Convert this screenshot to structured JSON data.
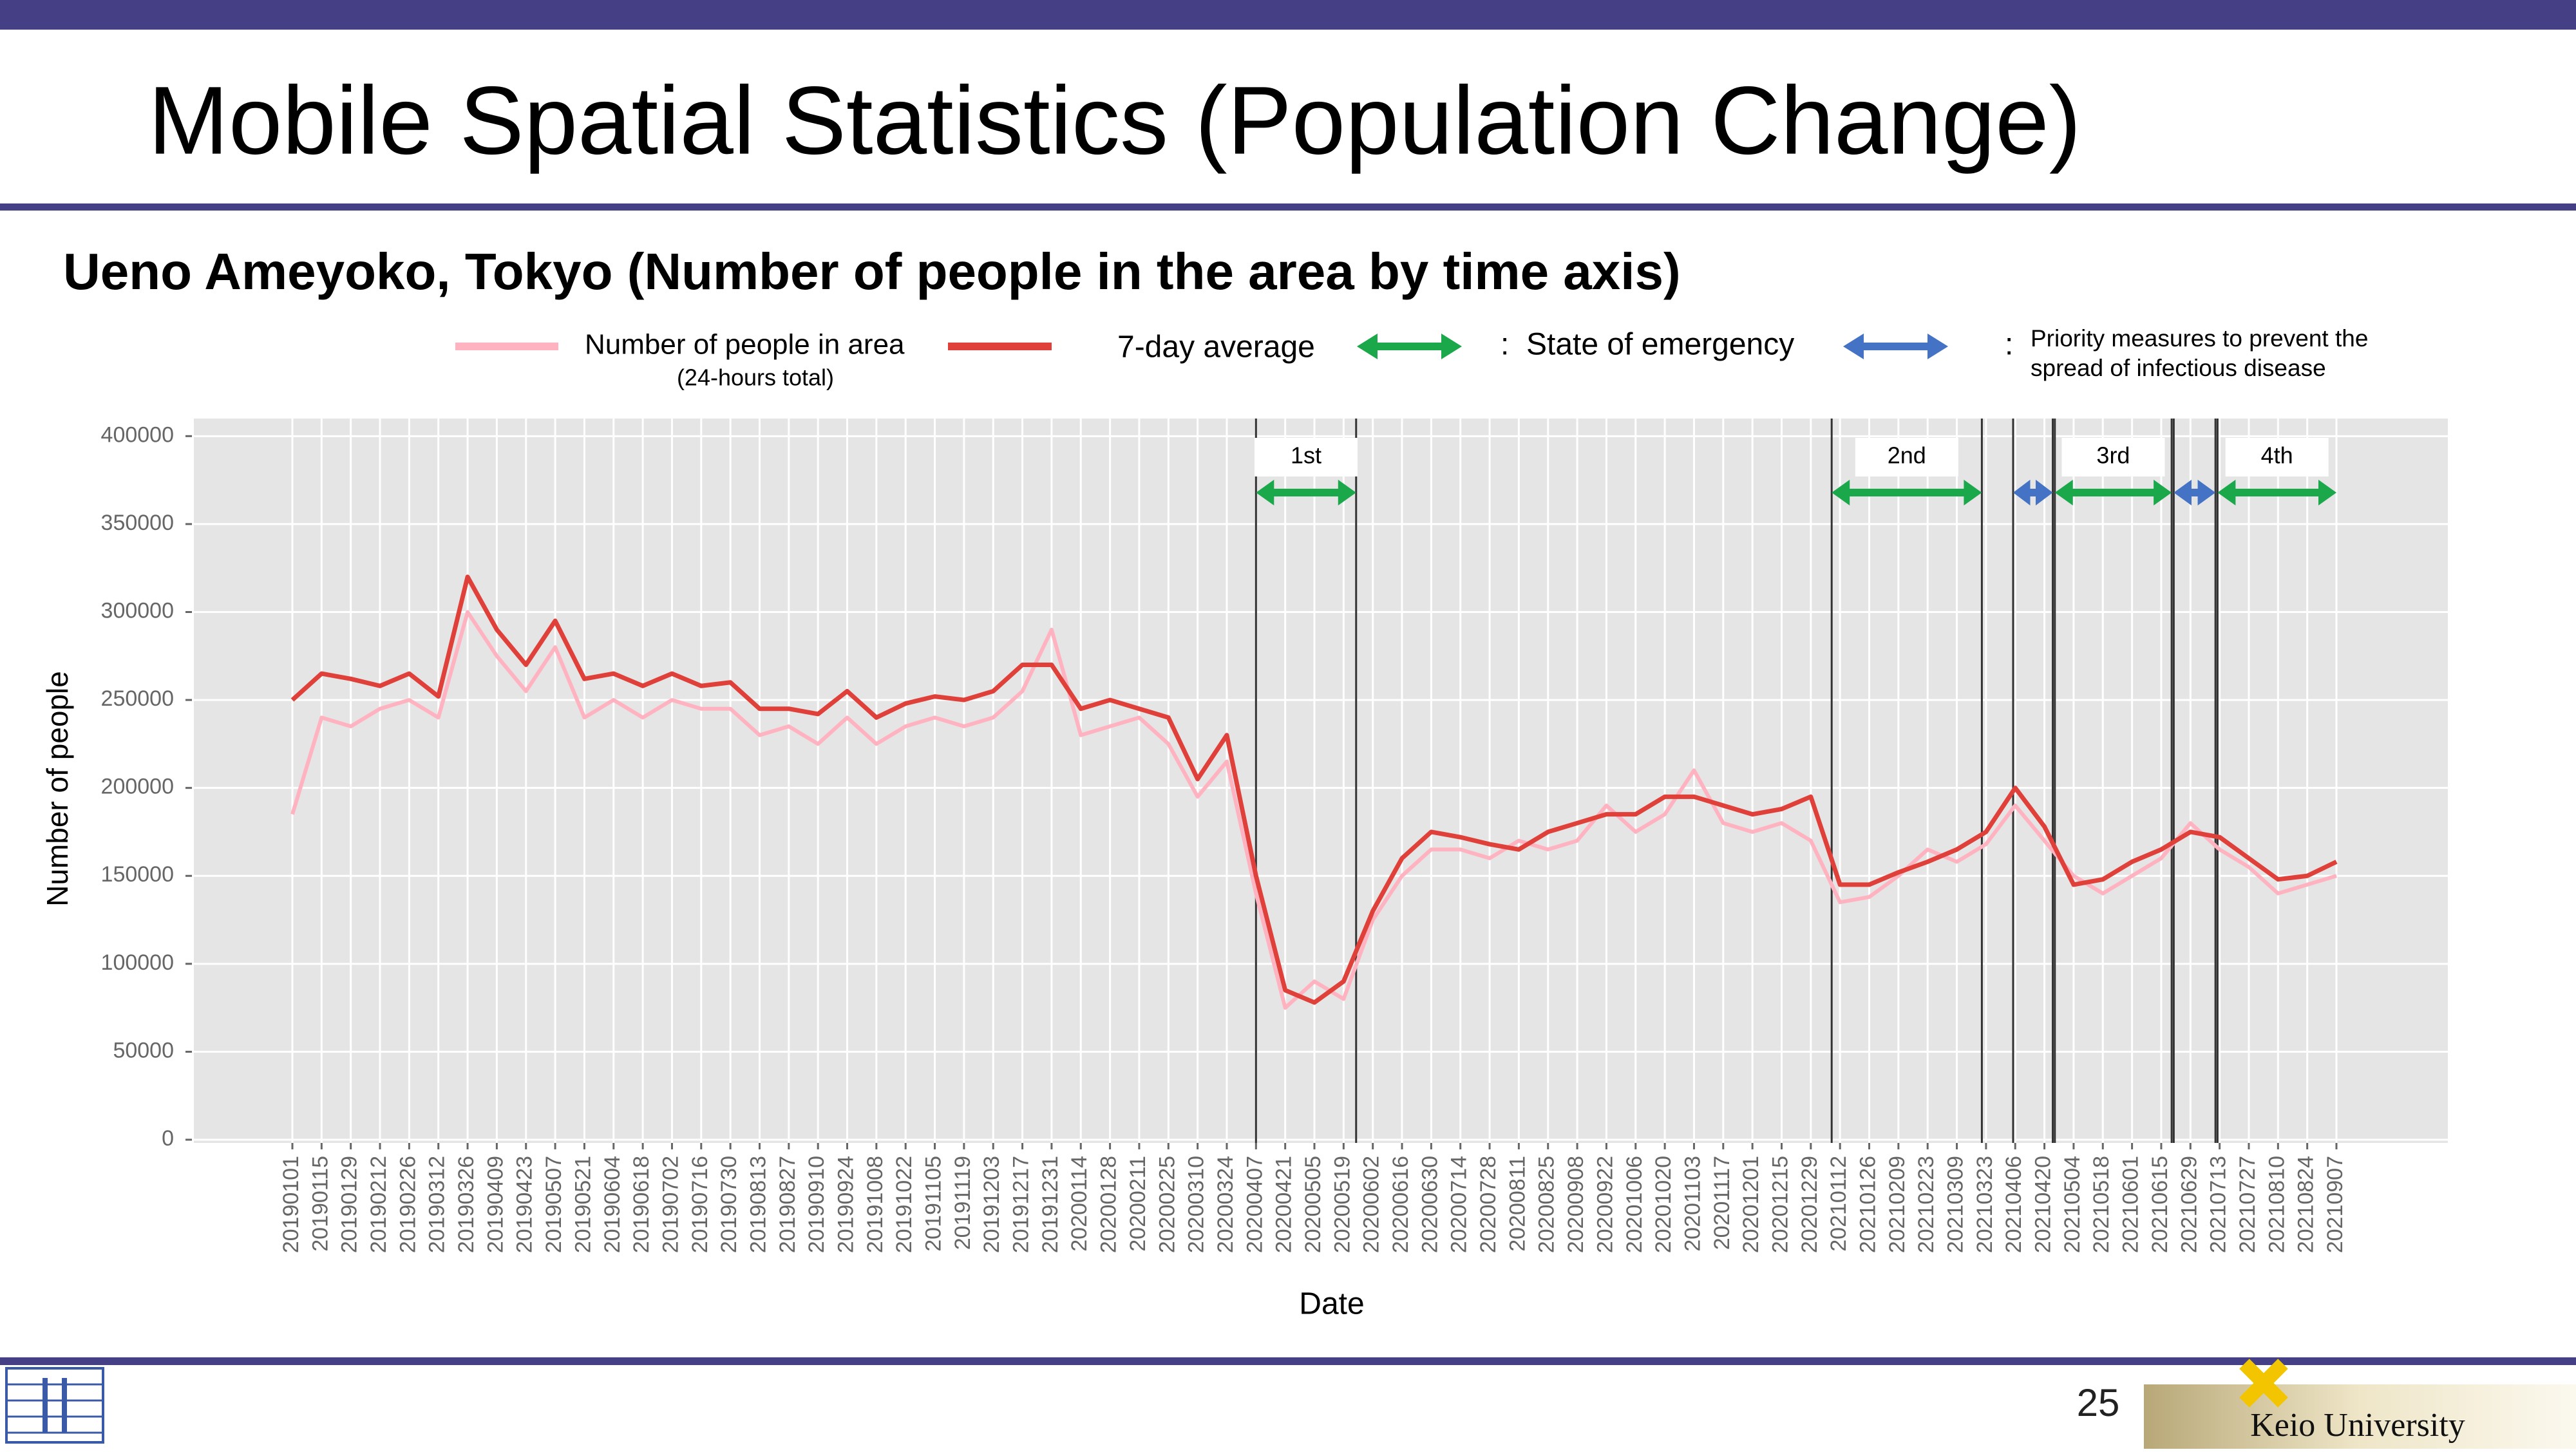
{
  "header": {
    "title": "Mobile Spatial Statistics (Population Change)",
    "subtitle": "Ueno Ameyoko, Tokyo (Number of people in the area by time axis)"
  },
  "chart_data": {
    "type": "line",
    "x_label": "Date",
    "y_label": "Number of people",
    "x": [
      "20190101",
      "20190115",
      "20190129",
      "20190212",
      "20190226",
      "20190312",
      "20190326",
      "20190409",
      "20190423",
      "20190507",
      "20190521",
      "20190604",
      "20190618",
      "20190702",
      "20190716",
      "20190730",
      "20190813",
      "20190827",
      "20190910",
      "20190924",
      "20191008",
      "20191022",
      "20191105",
      "20191119",
      "20191203",
      "20191217",
      "20191231",
      "20200114",
      "20200128",
      "20200211",
      "20200225",
      "20200310",
      "20200324",
      "20200407",
      "20200421",
      "20200505",
      "20200519",
      "20200602",
      "20200616",
      "20200630",
      "20200714",
      "20200728",
      "20200811",
      "20200825",
      "20200908",
      "20200922",
      "20201006",
      "20201020",
      "20201103",
      "20201117",
      "20201201",
      "20201215",
      "20201229",
      "20210112",
      "20210126",
      "20210209",
      "20210223",
      "20210309",
      "20210323",
      "20210406",
      "20210420",
      "20210504",
      "20210518",
      "20210601",
      "20210615",
      "20210629",
      "20210713",
      "20210727",
      "20210810",
      "20210824",
      "20210907"
    ],
    "series": [
      {
        "name": "Number of people in area",
        "color": "#ffb3c0",
        "values": [
          185000,
          240000,
          235000,
          245000,
          250000,
          240000,
          300000,
          275000,
          255000,
          280000,
          240000,
          250000,
          240000,
          250000,
          245000,
          245000,
          230000,
          235000,
          225000,
          240000,
          225000,
          235000,
          240000,
          235000,
          240000,
          255000,
          290000,
          230000,
          235000,
          240000,
          225000,
          195000,
          215000,
          140000,
          75000,
          90000,
          80000,
          125000,
          150000,
          165000,
          165000,
          160000,
          170000,
          165000,
          170000,
          190000,
          175000,
          185000,
          210000,
          180000,
          175000,
          180000,
          170000,
          135000,
          138000,
          150000,
          165000,
          158000,
          168000,
          190000,
          170000,
          150000,
          140000,
          150000,
          160000,
          180000,
          165000,
          155000,
          140000,
          145000,
          150000
        ]
      },
      {
        "name": "7-day average",
        "color": "#e0403a",
        "values": [
          250000,
          265000,
          262000,
          258000,
          265000,
          252000,
          320000,
          290000,
          270000,
          295000,
          262000,
          265000,
          258000,
          265000,
          258000,
          260000,
          245000,
          245000,
          242000,
          255000,
          240000,
          248000,
          252000,
          250000,
          255000,
          270000,
          270000,
          245000,
          250000,
          245000,
          240000,
          205000,
          230000,
          150000,
          85000,
          78000,
          90000,
          130000,
          160000,
          175000,
          172000,
          168000,
          165000,
          175000,
          180000,
          185000,
          185000,
          195000,
          195000,
          190000,
          185000,
          188000,
          195000,
          145000,
          145000,
          152000,
          158000,
          165000,
          175000,
          200000,
          178000,
          145000,
          148000,
          158000,
          165000,
          175000,
          172000,
          160000,
          148000,
          150000,
          158000
        ]
      }
    ],
    "legend_note": "(24-hours total)",
    "ylim": [
      0,
      410000
    ],
    "yticks": [
      0,
      50000,
      100000,
      150000,
      200000,
      250000,
      300000,
      350000,
      400000
    ],
    "grid": true,
    "period_types": {
      "emergency": {
        "name": [
          "State of emergency"
        ],
        "color": "#1aa84b"
      },
      "priority": {
        "name": [
          "Priority measures to prevent the",
          "spread of infectious disease"
        ],
        "color": "#4472c4"
      }
    },
    "periods": [
      {
        "kind": "emergency",
        "label": "1st",
        "start": "20200407",
        "end": "20200525"
      },
      {
        "kind": "emergency",
        "label": "2nd",
        "start": "20210108",
        "end": "20210321"
      },
      {
        "kind": "priority",
        "start": "20210405",
        "end": "20210424"
      },
      {
        "kind": "emergency",
        "label": "3rd",
        "start": "20210425",
        "end": "20210620"
      },
      {
        "kind": "priority",
        "start": "20210621",
        "end": "20210711"
      },
      {
        "kind": "emergency",
        "label": "4th",
        "start": "20210712",
        "end": "20210907"
      }
    ]
  },
  "footer": {
    "page": "25",
    "logo_text": "Keio University"
  }
}
